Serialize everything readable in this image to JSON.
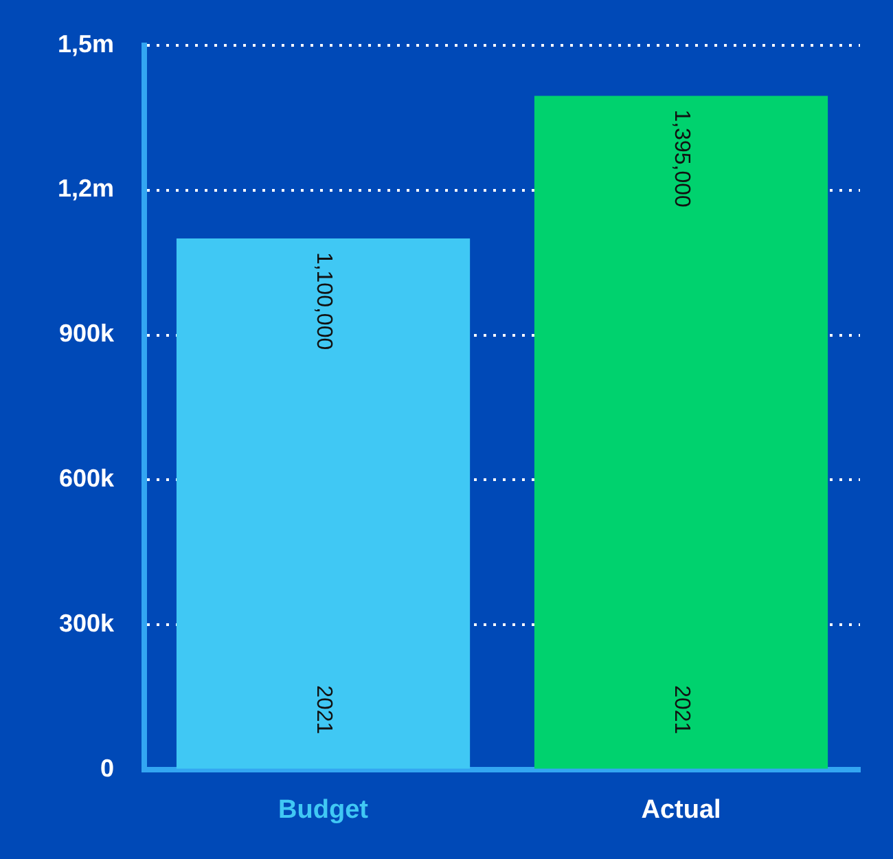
{
  "chart_data": {
    "type": "bar",
    "categories": [
      "Budget",
      "Actual"
    ],
    "series": [
      {
        "name": "2021",
        "colors": [
          "#40c8f4",
          "#00d26e"
        ],
        "values": [
          1100000,
          1395000
        ],
        "value_labels": [
          "1,100,000",
          "1,395,000"
        ]
      }
    ],
    "ylim": [
      0,
      1500000
    ],
    "yticks": [
      {
        "value": 0,
        "label": "0"
      },
      {
        "value": 300000,
        "label": "300k"
      },
      {
        "value": 600000,
        "label": "600k"
      },
      {
        "value": 900000,
        "label": "900k"
      },
      {
        "value": 1200000,
        "label": "1,2m"
      },
      {
        "value": 1500000,
        "label": "1,5m"
      }
    ],
    "grid": "y",
    "legend": false
  }
}
